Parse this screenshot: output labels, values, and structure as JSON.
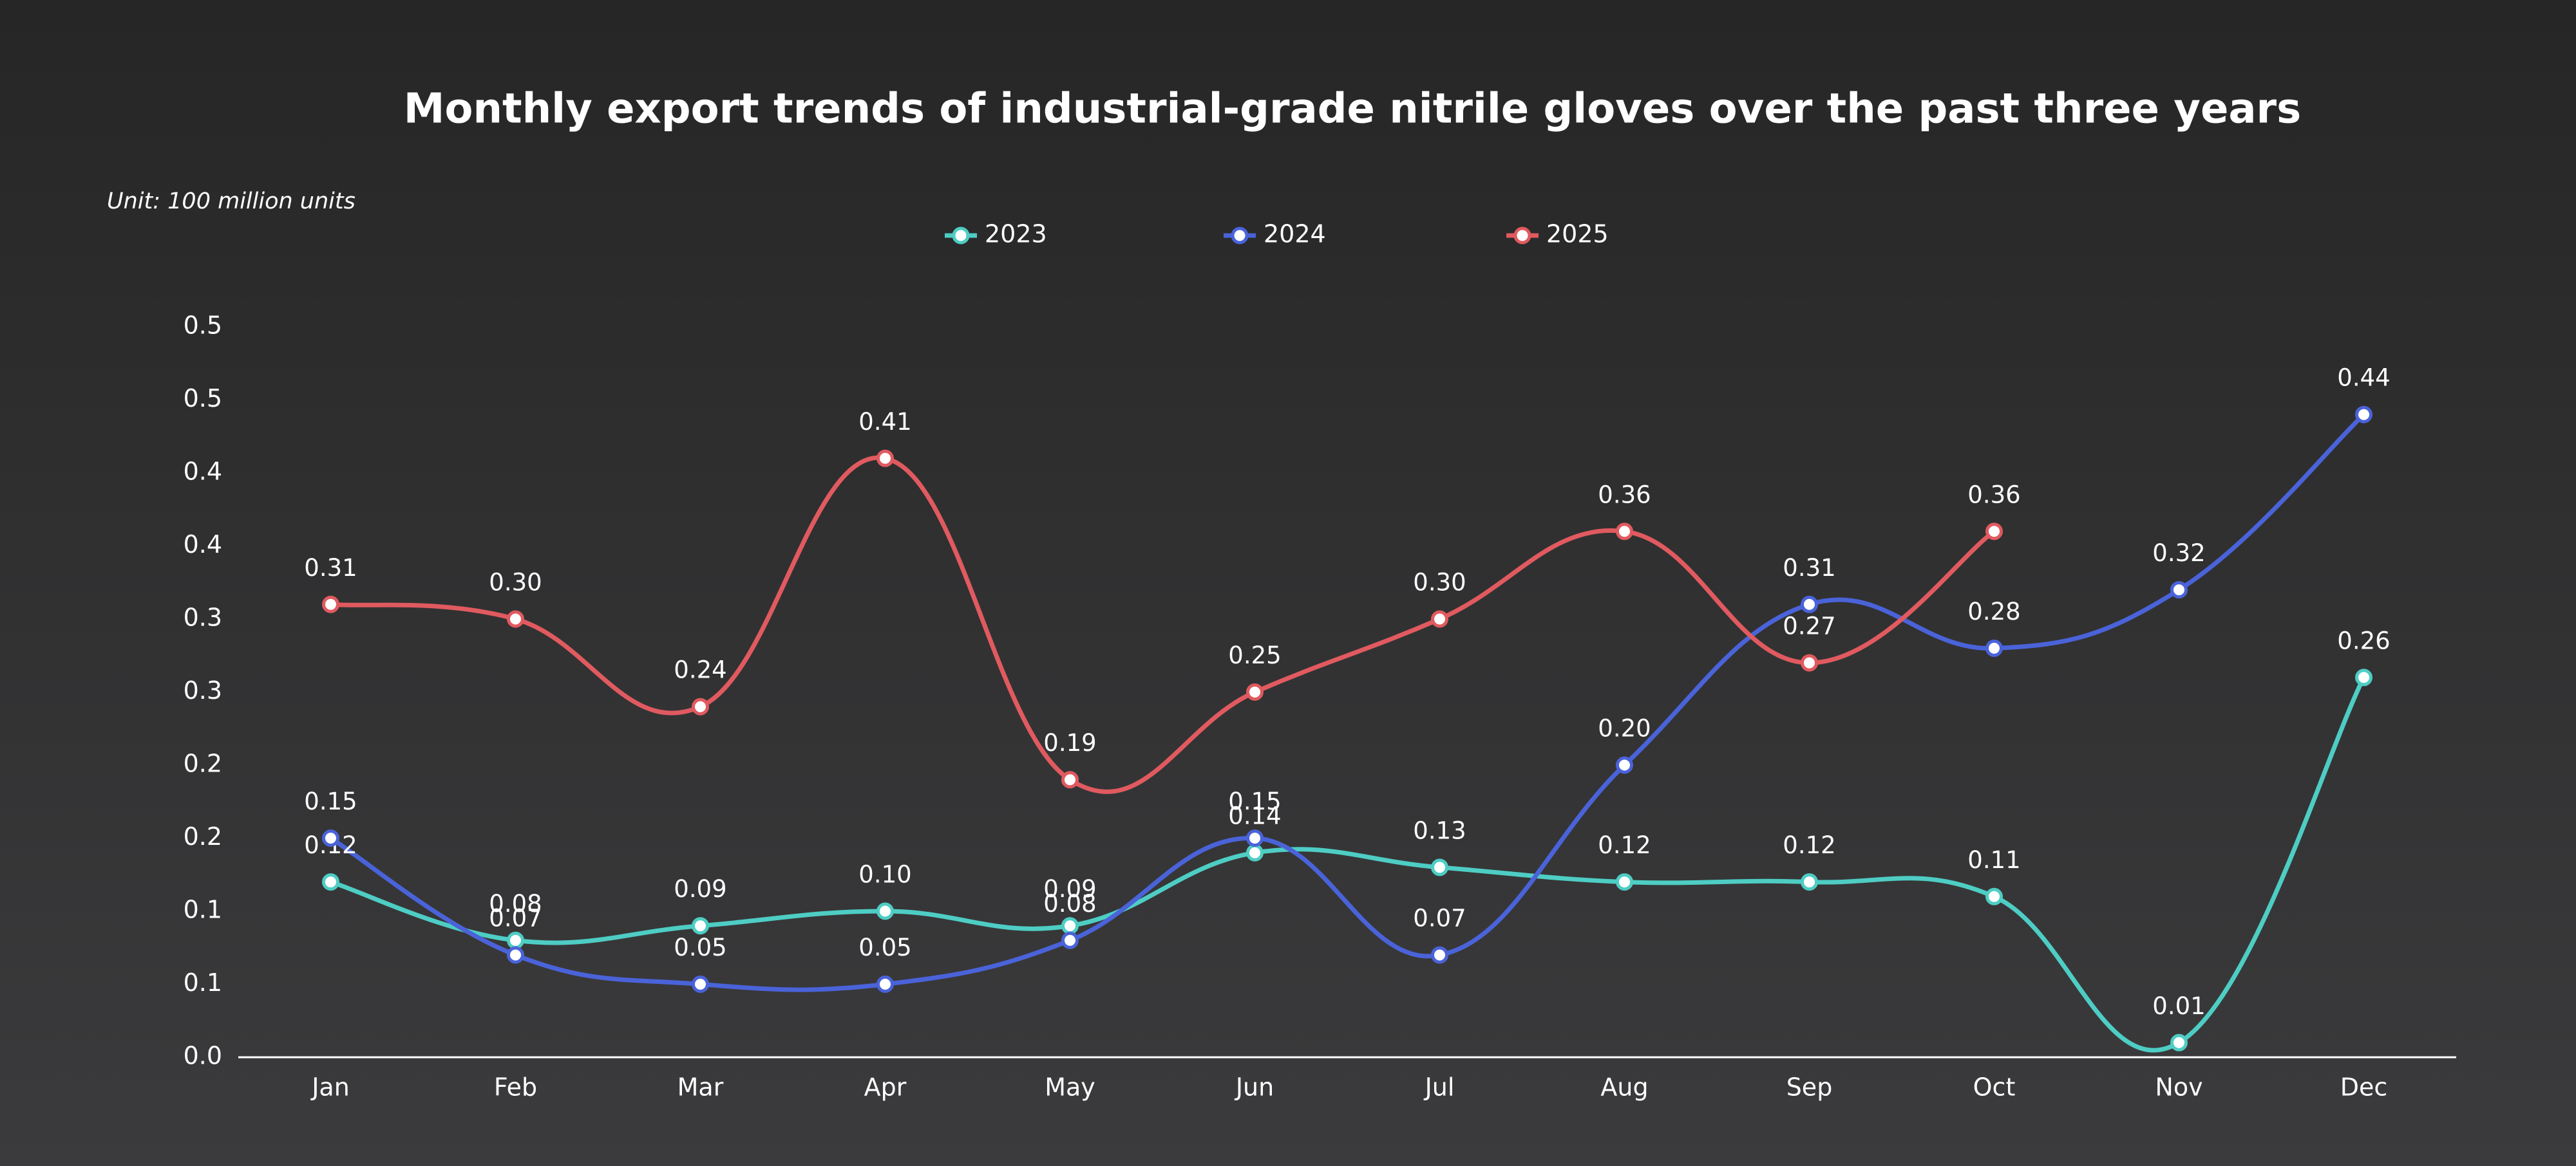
{
  "chart_data": {
    "type": "line",
    "title": "Monthly export trends of industrial-grade nitrile gloves over the past three years",
    "subtitle": "Unit: 100 million units",
    "categories": [
      "Jan",
      "Feb",
      "Mar",
      "Apr",
      "May",
      "Jun",
      "Jul",
      "Aug",
      "Sep",
      "Oct",
      "Nov",
      "Dec"
    ],
    "series": [
      {
        "name": "2023",
        "color": "#4ecdc4",
        "values": [
          0.12,
          0.08,
          0.09,
          0.1,
          0.09,
          0.14,
          0.13,
          0.12,
          0.12,
          0.11,
          0.01,
          0.26
        ],
        "value_labels": [
          "0.12",
          "0.08",
          "0.09",
          "0.10",
          "0.09",
          "0.14",
          "0.13",
          "0.12",
          "0.12",
          "0.11",
          "0.01",
          "0.26"
        ]
      },
      {
        "name": "2024",
        "color": "#4a63d9",
        "values": [
          0.15,
          0.07,
          0.05,
          0.05,
          0.08,
          0.15,
          0.07,
          0.2,
          0.31,
          0.28,
          0.32,
          0.44
        ],
        "value_labels": [
          "0.15",
          "0.07",
          "0.05",
          "0.05",
          "0.08",
          "0.15",
          "0.07",
          "0.20",
          "0.31",
          "0.28",
          "0.32",
          "0.44"
        ]
      },
      {
        "name": "2025",
        "color": "#e05a5f",
        "values": [
          0.31,
          0.3,
          0.24,
          0.41,
          0.19,
          0.25,
          0.3,
          0.36,
          0.27,
          0.36,
          null,
          null
        ],
        "value_labels": [
          "0.31",
          "0.30",
          "0.24",
          "0.41",
          "0.19",
          "0.25",
          "0.30",
          "0.36",
          "0.27",
          "0.36",
          null,
          null
        ]
      }
    ],
    "ylim": [
      0,
      0.5
    ],
    "yticks": [
      {
        "value": 0,
        "label": "0.0"
      },
      {
        "value": 0.05,
        "label": "0.1"
      },
      {
        "value": 0.1,
        "label": "0.1"
      },
      {
        "value": 0.15,
        "label": "0.2"
      },
      {
        "value": 0.2,
        "label": "0.2"
      },
      {
        "value": 0.25,
        "label": "0.3"
      },
      {
        "value": 0.3,
        "label": "0.3"
      },
      {
        "value": 0.35,
        "label": "0.4"
      },
      {
        "value": 0.4,
        "label": "0.4"
      },
      {
        "value": 0.45,
        "label": "0.5"
      },
      {
        "value": 0.5,
        "label": "0.5"
      }
    ],
    "grid": false,
    "legend": "top"
  }
}
